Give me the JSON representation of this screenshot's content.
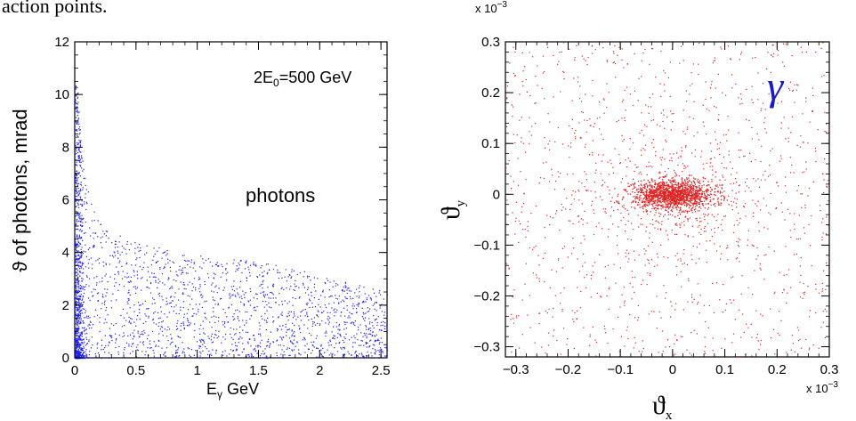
{
  "caption_fragment": "action points.",
  "chart_data": [
    {
      "type": "scatter",
      "xlabel": "Eγ GeV",
      "xlabel_main": "E",
      "xlabel_sub": "γ",
      "xlabel_tail": " GeV",
      "ylabel": "ϑ of photons, mrad",
      "xlim": [
        0,
        2.55
      ],
      "ylim": [
        0,
        12
      ],
      "xticks": [
        0,
        0.5,
        1,
        1.5,
        2,
        2.5
      ],
      "xtick_labels": [
        "0",
        "0.5",
        "1",
        "1.5",
        "2",
        "2.5"
      ],
      "yticks": [
        0,
        2,
        4,
        6,
        8,
        10,
        12
      ],
      "ytick_labels": [
        "0",
        "2",
        "4",
        "6",
        "8",
        "10",
        "12"
      ],
      "annotations": {
        "energy_main": "2E",
        "energy_sub": "0",
        "energy_tail": "=500 GeV",
        "label": "photons"
      },
      "point_color": "#1a1aff",
      "series": [
        {
          "values_description": "dense near E=0, theta spreads up to ~10 mrad at low E, falling to ~2.5 mrad at high E",
          "points": [
            [
              0.02,
              10.4
            ],
            [
              0.03,
              9.6
            ],
            [
              0.04,
              8.9
            ],
            [
              0.05,
              8.2
            ],
            [
              0.06,
              7.6
            ],
            [
              0.08,
              7.0
            ],
            [
              0.1,
              6.5
            ],
            [
              0.12,
              6.0
            ],
            [
              0.15,
              5.7
            ],
            [
              0.2,
              5.3
            ],
            [
              0.25,
              5.0
            ],
            [
              0.3,
              4.8
            ],
            [
              0.4,
              4.6
            ],
            [
              0.5,
              4.4
            ],
            [
              0.6,
              4.3
            ],
            [
              0.7,
              4.2
            ],
            [
              0.8,
              4.1
            ],
            [
              0.9,
              3.9
            ],
            [
              1.0,
              3.9
            ],
            [
              1.2,
              3.8
            ],
            [
              1.4,
              3.7
            ],
            [
              1.6,
              3.6
            ],
            [
              1.8,
              3.4
            ],
            [
              2.0,
              3.1
            ],
            [
              2.2,
              2.9
            ],
            [
              2.4,
              2.7
            ],
            [
              2.5,
              2.6
            ]
          ]
        }
      ]
    },
    {
      "type": "scatter",
      "xlabel": "ϑx",
      "xlabel_main": "ϑ",
      "xlabel_sub": "x",
      "ylabel": "ϑy",
      "ylabel_main": "ϑ",
      "ylabel_sub": "y",
      "xlim": [
        -0.32,
        0.3
      ],
      "ylim": [
        -0.32,
        0.3
      ],
      "x_scale_label": "× 10⁻³",
      "y_scale_label": "× 10⁻³",
      "x_scale_main": "x 10",
      "x_scale_exp": "−3",
      "y_scale_main": "x 10",
      "y_scale_exp": "−3",
      "xticks": [
        -0.3,
        -0.2,
        -0.1,
        0,
        0.1,
        0.2,
        0.3
      ],
      "xtick_labels": [
        "−0.3",
        "−0.2",
        "−0.1",
        "0",
        "0.1",
        "0.2",
        "0.3"
      ],
      "yticks": [
        -0.3,
        -0.2,
        -0.1,
        0,
        0.1,
        0.2,
        0.3
      ],
      "ytick_labels": [
        "−0.3",
        "−0.2",
        "−0.1",
        "0",
        "0.1",
        "0.2",
        "0.3"
      ],
      "annotations": {
        "symbol": "γ"
      },
      "point_color": "#e02020",
      "series": [
        {
          "values_description": "uniform halo over the full square plus a dense elliptical core centred at (0,0), half-width ~0.08 in x and ~0.035 in y"
        }
      ]
    }
  ]
}
